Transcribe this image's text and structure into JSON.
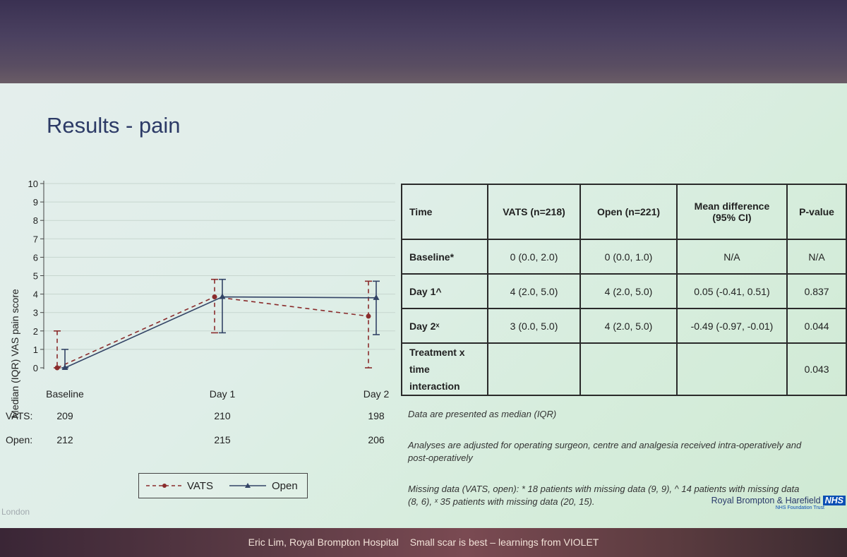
{
  "slide": {
    "title": "Results - pain"
  },
  "chart_data": {
    "type": "line",
    "ylabel": "Median (IQR) VAS pain score",
    "ylim": [
      0,
      10
    ],
    "yticks": [
      "0",
      "1",
      "2",
      "3",
      "4",
      "5",
      "6",
      "7",
      "8",
      "9",
      "10"
    ],
    "categories": [
      "Baseline",
      "Day 1",
      "Day 2"
    ],
    "series": [
      {
        "name": "VATS",
        "color": "#8a2c2c",
        "style": "dashed",
        "marker": "circle",
        "values": [
          0,
          3.85,
          2.8
        ],
        "low": [
          0,
          1.9,
          0
        ],
        "high": [
          2.0,
          4.8,
          4.7
        ]
      },
      {
        "name": "Open",
        "color": "#334466",
        "style": "solid",
        "marker": "triangle",
        "values": [
          0,
          3.85,
          3.8
        ],
        "low": [
          0,
          1.9,
          1.8
        ],
        "high": [
          1.0,
          4.8,
          4.7
        ]
      }
    ],
    "counts": [
      {
        "label": "VATS:",
        "values": [
          "209",
          "210",
          "198"
        ]
      },
      {
        "label": "Open:",
        "values": [
          "212",
          "215",
          "206"
        ]
      }
    ],
    "grid": true,
    "legend_position": "bottom"
  },
  "table": {
    "headers": [
      "Time",
      "VATS (n=218)",
      "Open (n=221)",
      "Mean difference (95% CI)",
      "P-value"
    ],
    "rows": [
      [
        "Baseline*",
        "0 (0.0, 2.0)",
        "0 (0.0, 1.0)",
        "N/A",
        "N/A"
      ],
      [
        "Day 1^",
        "4 (2.0, 5.0)",
        "4 (2.0, 5.0)",
        "0.05 (-0.41, 0.51)",
        "0.837"
      ],
      [
        "Day 2ˣ",
        "3 (0.0, 5.0)",
        "4 (2.0, 5.0)",
        "-0.49 (-0.97, -0.01)",
        "0.044"
      ],
      [
        "Treatment x time interaction",
        "",
        "",
        "",
        "0.043"
      ]
    ]
  },
  "notes": {
    "presented": "Data are presented as median (IQR)",
    "adjusted": "Analyses are adjusted for operating surgeon, centre and analgesia received intra-operatively and post-operatively",
    "missing": "Missing data (VATS, open): * 18 patients with missing data (9, 9), ^ 14 patients with missing data (8, 6), ˣ 35 patients with missing data (20, 15)."
  },
  "branding": {
    "org": "Royal Brompton & Harefield",
    "nhs": "NHS",
    "trust": "NHS Foundation Trust",
    "corner_text": "London"
  },
  "footer": {
    "presenter": "Eric Lim, Royal Brompton Hospital",
    "talk": "Small scar is best – learnings from VIOLET"
  }
}
